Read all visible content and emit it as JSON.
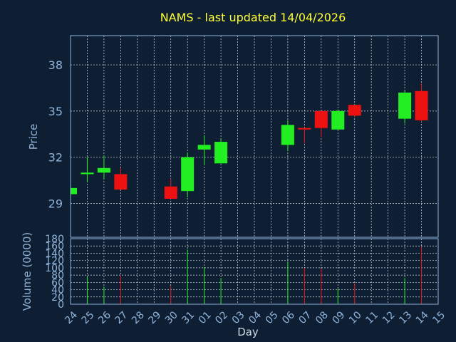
{
  "chart_data": {
    "type": "candlestick",
    "title": "NAMS - last updated 14/04/2026",
    "xlabel": "Day",
    "price_ylabel": "Price",
    "volume_ylabel": "Volume (0000)",
    "price_ylim": [
      26.8,
      39.9
    ],
    "price_ticks": [
      29,
      32,
      35,
      38
    ],
    "volume_ylim": [
      0,
      180
    ],
    "volume_ticks": [
      0,
      20,
      40,
      60,
      80,
      100,
      120,
      140,
      160,
      180
    ],
    "grid": true,
    "colors": {
      "up": "#22ee22",
      "down": "#ee1111",
      "background": "#0f1f33",
      "title": "#ffff33",
      "axis_text": "#8fb3d9"
    },
    "days": [
      "24",
      "25",
      "26",
      "27",
      "28",
      "29",
      "30",
      "31",
      "01",
      "02",
      "03",
      "04",
      "05",
      "06",
      "07",
      "08",
      "09",
      "10",
      "11",
      "12",
      "13",
      "14",
      "15"
    ],
    "candles": [
      {
        "day": "24",
        "open": 29.6,
        "high": 30.1,
        "low": 29.6,
        "close": 30.0,
        "volume": 5
      },
      {
        "day": "25",
        "open": 30.9,
        "high": 32.0,
        "low": 30.4,
        "close": 31.0,
        "volume": 75
      },
      {
        "day": "26",
        "open": 31.0,
        "high": 32.1,
        "low": 30.6,
        "close": 31.3,
        "volume": 48
      },
      {
        "day": "27",
        "open": 30.9,
        "high": 31.3,
        "low": 29.9,
        "close": 29.9,
        "volume": 78
      },
      {
        "day": "30",
        "open": 30.1,
        "high": 30.6,
        "low": 29.3,
        "close": 29.3,
        "volume": 50
      },
      {
        "day": "31",
        "open": 29.8,
        "high": 32.3,
        "low": 29.4,
        "close": 32.0,
        "volume": 150
      },
      {
        "day": "01",
        "open": 32.5,
        "high": 33.4,
        "low": 31.5,
        "close": 32.8,
        "volume": 102
      },
      {
        "day": "02",
        "open": 31.6,
        "high": 33.2,
        "low": 31.6,
        "close": 33.0,
        "volume": 72
      },
      {
        "day": "06",
        "open": 32.8,
        "high": 34.4,
        "low": 32.4,
        "close": 34.1,
        "volume": 117
      },
      {
        "day": "07",
        "open": 33.9,
        "high": 33.9,
        "low": 32.9,
        "close": 33.8,
        "volume": 100
      },
      {
        "day": "08",
        "open": 35.0,
        "high": 35.0,
        "low": 33.3,
        "close": 33.9,
        "volume": 97
      },
      {
        "day": "09",
        "open": 33.8,
        "high": 35.1,
        "low": 33.8,
        "close": 35.0,
        "volume": 42
      },
      {
        "day": "10",
        "open": 35.4,
        "high": 35.4,
        "low": 34.6,
        "close": 34.7,
        "volume": 58
      },
      {
        "day": "13",
        "open": 34.5,
        "high": 36.3,
        "low": 34.2,
        "close": 36.2,
        "volume": 72
      },
      {
        "day": "14",
        "open": 36.3,
        "high": 36.8,
        "low": 34.3,
        "close": 34.4,
        "volume": 158
      }
    ]
  }
}
